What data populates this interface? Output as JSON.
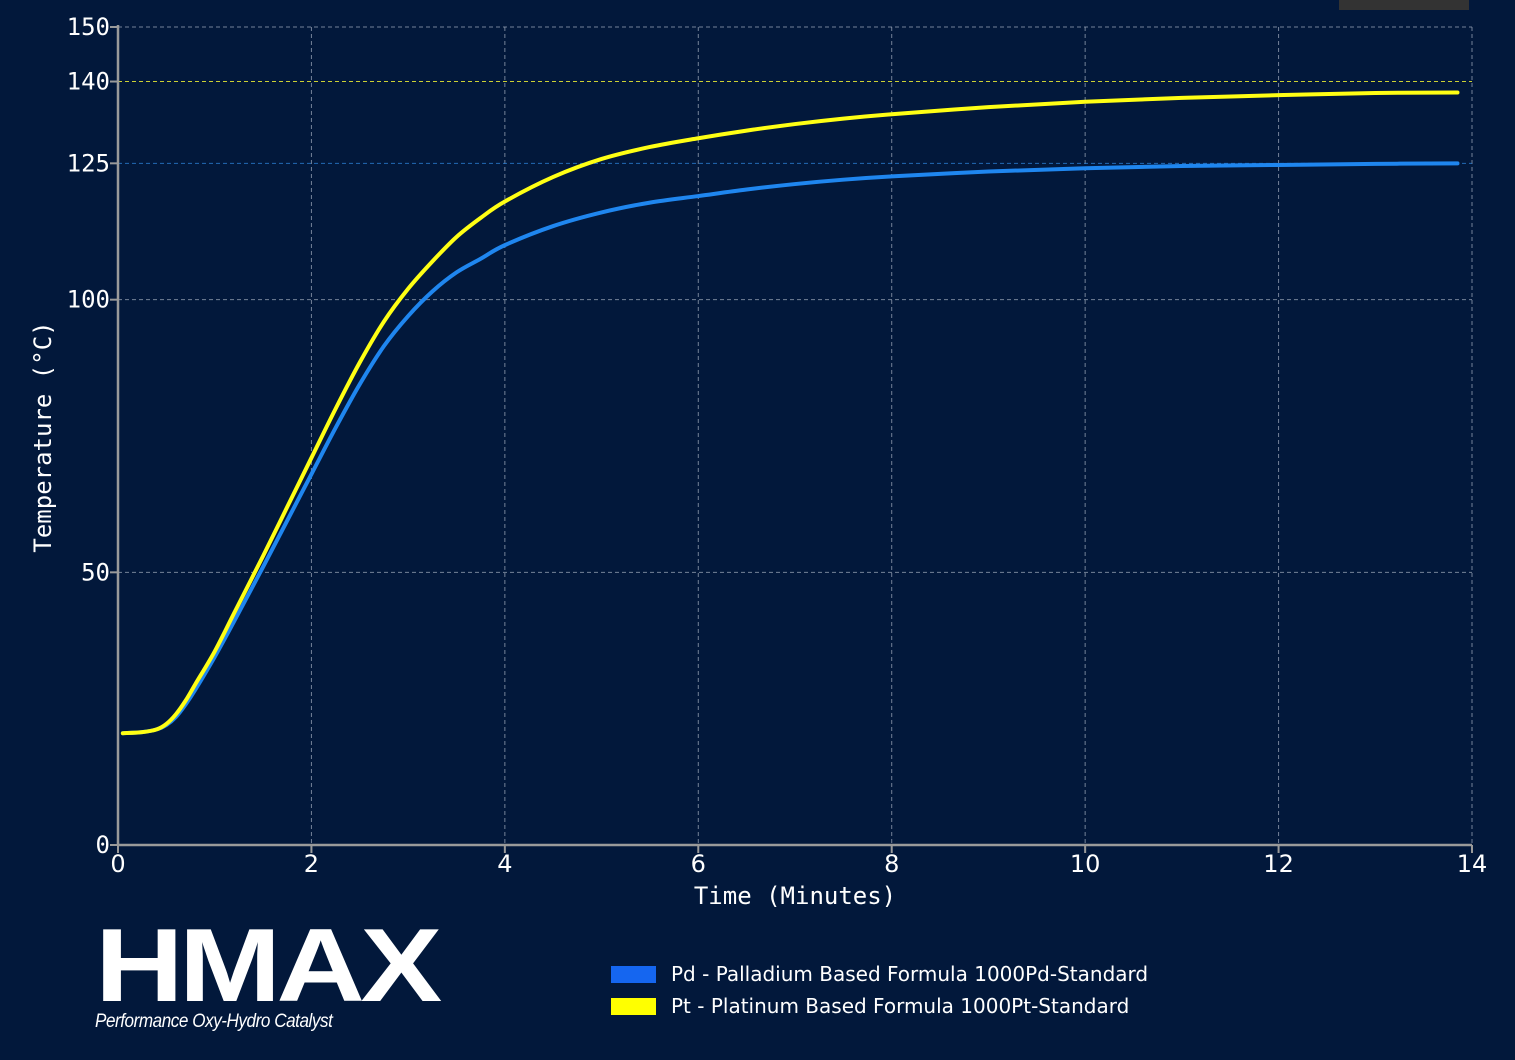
{
  "chart_data": {
    "type": "line",
    "xlabel": "Time (Minutes)",
    "ylabel": "Temperature (°C)",
    "xlim": [
      0,
      14
    ],
    "ylim": [
      0,
      150
    ],
    "xticks": [
      0,
      2,
      4,
      6,
      8,
      10,
      12,
      14
    ],
    "yticks": [
      0,
      50,
      100,
      125,
      140,
      150
    ],
    "grid": true,
    "legend_position": "bottom-center",
    "reference_lines": [
      {
        "y": 140,
        "color": "#ffff33"
      },
      {
        "y": 125,
        "color": "#2a7fd4"
      }
    ],
    "series": [
      {
        "name": "Pd - Palladium Based Formula 1000Pd-Standard",
        "color": "#1f86ef",
        "x": [
          0.05,
          0.25,
          0.4,
          0.5,
          0.6,
          0.7,
          0.8,
          1.0,
          1.2,
          1.5,
          1.75,
          2.0,
          2.25,
          2.5,
          2.75,
          3.0,
          3.25,
          3.5,
          3.75,
          4.0,
          4.5,
          5.0,
          5.5,
          6.0,
          6.5,
          7.0,
          7.5,
          8.0,
          9.0,
          10.0,
          11.0,
          12.0,
          13.0,
          13.85
        ],
        "y": [
          20.5,
          20.7,
          21.2,
          22,
          23.5,
          25.8,
          28.5,
          34.5,
          41,
          51,
          59.5,
          68,
          76.5,
          84.5,
          91.5,
          97,
          101.5,
          105,
          107.5,
          110,
          113.5,
          116,
          117.8,
          119,
          120.2,
          121.2,
          122,
          122.6,
          123.5,
          124.1,
          124.5,
          124.7,
          124.9,
          125
        ]
      },
      {
        "name": "Pt - Platinum Based Formula 1000Pt-Standard",
        "color": "#ffff14",
        "x": [
          0.05,
          0.25,
          0.4,
          0.5,
          0.6,
          0.7,
          0.8,
          1.0,
          1.2,
          1.5,
          1.75,
          2.0,
          2.25,
          2.5,
          2.75,
          3.0,
          3.25,
          3.5,
          3.75,
          4.0,
          4.5,
          5.0,
          5.5,
          6.0,
          6.5,
          7.0,
          7.5,
          8.0,
          9.0,
          10.0,
          11.0,
          12.0,
          13.0,
          13.85
        ],
        "y": [
          20.5,
          20.7,
          21.2,
          22.2,
          24,
          26.5,
          29.5,
          35.5,
          42.5,
          53,
          62,
          71,
          80,
          88.5,
          96,
          102,
          107,
          111.5,
          115,
          118,
          122.5,
          125.8,
          128,
          129.6,
          131,
          132.2,
          133.2,
          134,
          135.3,
          136.3,
          137,
          137.5,
          137.9,
          138
        ]
      }
    ]
  },
  "logo": {
    "wordmark": "HMAX",
    "tagline": "Performance Oxy-Hydro Catalyst"
  },
  "legend": {
    "items": [
      {
        "label": "Pd - Palladium Based Formula 1000Pd-Standard",
        "color": "#1566f0"
      },
      {
        "label": "Pt - Platinum Based Formula 1000Pt-Standard",
        "color": "#ffff00"
      }
    ]
  }
}
